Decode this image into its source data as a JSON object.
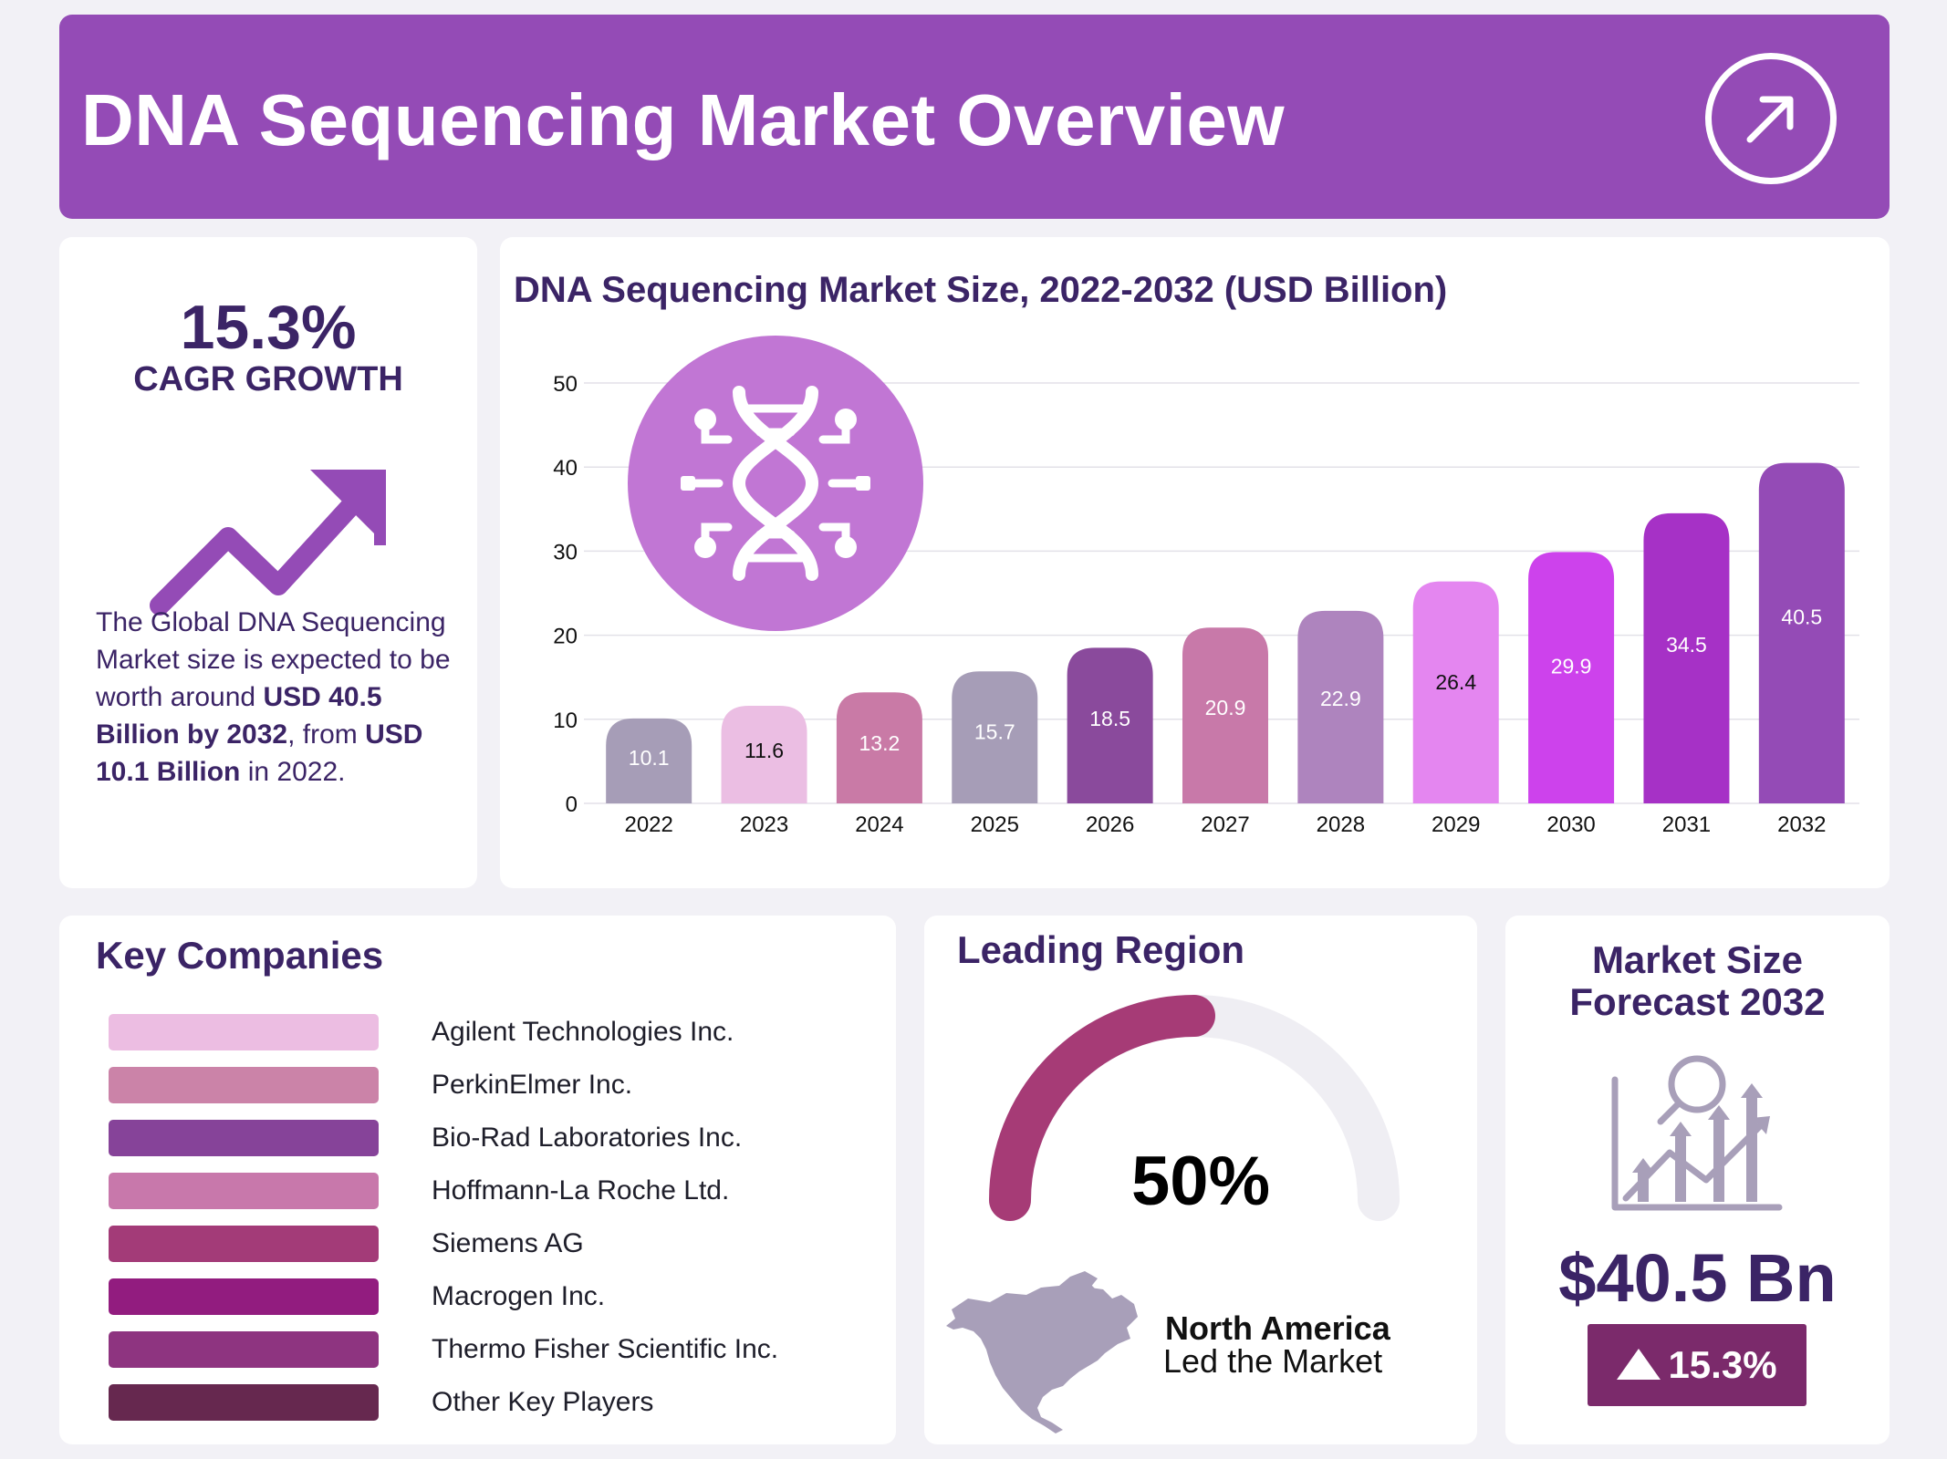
{
  "header": {
    "title": "DNA Sequencing Market Overview"
  },
  "cagr": {
    "value": "15.3%",
    "label": "CAGR GROWTH",
    "desc_1": "The Global DNA Sequencing Market size is expected to be worth around ",
    "desc_2": "USD 40.5 Billion by 2032",
    "desc_3": ", from ",
    "desc_4": "USD 10.1 Billion",
    "desc_5": " in 2022."
  },
  "chart_data": {
    "type": "bar",
    "title": "DNA Sequencing Market Size, 2022-2032 (USD Billion)",
    "categories": [
      "2022",
      "2023",
      "2024",
      "2025",
      "2026",
      "2027",
      "2028",
      "2029",
      "2030",
      "2031",
      "2032"
    ],
    "values": [
      10.1,
      11.6,
      13.2,
      15.7,
      18.5,
      20.9,
      22.9,
      26.4,
      29.9,
      34.5,
      40.5
    ],
    "data_labels": [
      "10.1",
      "11.6",
      "13.2",
      "15.7",
      "18.5",
      "20.9",
      "22.9",
      "26.4",
      "29.9",
      "34.5",
      "40.5"
    ],
    "colors": [
      "#a69db7",
      "#ebbee3",
      "#c97aa6",
      "#a69db7",
      "#8a4a9c",
      "#c879a9",
      "#ae84be",
      "#e486f0",
      "#cd42ec",
      "#a631c6",
      "#944bb6"
    ],
    "label_colors": [
      "#ffffff",
      "#111111",
      "#ffffff",
      "#ffffff",
      "#ffffff",
      "#ffffff",
      "#ffffff",
      "#111111",
      "#ffffff",
      "#ffffff",
      "#ffffff"
    ],
    "yticks": [
      "0",
      "10",
      "20",
      "30",
      "40",
      "50"
    ],
    "ylim": [
      0,
      50
    ],
    "grid": true,
    "xlabel": "",
    "ylabel": ""
  },
  "companies": {
    "title": "Key Companies",
    "items": [
      {
        "name": "Agilent Technologies Inc.",
        "color": "#ecbde2"
      },
      {
        "name": "PerkinElmer Inc.",
        "color": "#cb83a8"
      },
      {
        "name": "Bio-Rad Laboratories Inc.",
        "color": "#864399"
      },
      {
        "name": "Hoffmann-La Roche Ltd.",
        "color": "#c878ab"
      },
      {
        "name": "Siemens AG",
        "color": "#a33b78"
      },
      {
        "name": "Macrogen Inc.",
        "color": "#921c7f"
      },
      {
        "name": "Thermo Fisher Scientific Inc.",
        "color": "#8e3480"
      },
      {
        "name": "Other Key Players",
        "color": "#66284f"
      }
    ]
  },
  "region": {
    "title": "Leading Region",
    "percent": "50%",
    "share": 0.5,
    "name": "North America",
    "subtitle": "Led the Market",
    "gauge_color": "#a63b76",
    "track_color": "#efeef3"
  },
  "forecast": {
    "title_line1": "Market Size",
    "title_line2": "Forecast 2032",
    "value": "$40.5 Bn",
    "badge": "15.3%"
  },
  "icons": {
    "header": "arrow-up-right-circle-icon",
    "cagr": "trend-up-arrow-icon",
    "chart": "dna-helix-icon",
    "region": "north-america-map-icon",
    "forecast": "growth-analysis-icon",
    "badge": "triangle-up-icon"
  }
}
